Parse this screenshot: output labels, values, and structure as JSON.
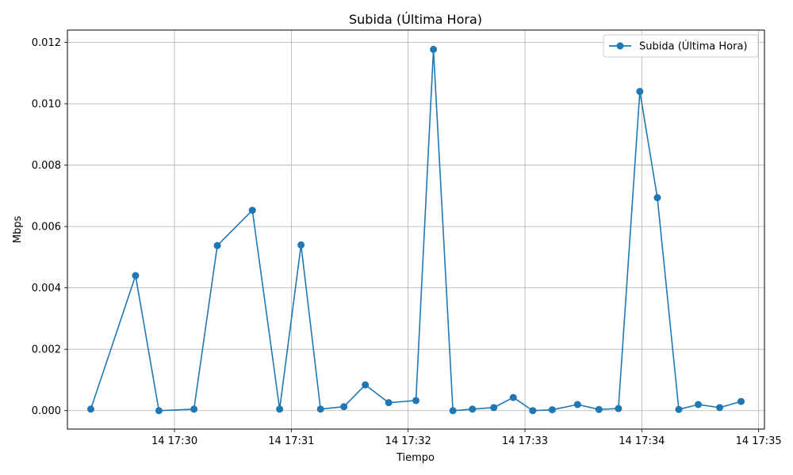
{
  "chart_data": {
    "type": "line",
    "title": "Subida (Última Hora)",
    "xlabel": "Tiempo",
    "ylabel": "Mbps",
    "grid": true,
    "legend_position": "top-right",
    "series_color": "#1f77b4",
    "xlim": [
      "14 17:29:05",
      "14 17:35:03"
    ],
    "ylim": [
      -0.0006,
      0.0124
    ],
    "x_ticks": [
      "14 17:30",
      "14 17:31",
      "14 17:32",
      "14 17:33",
      "14 17:34",
      "14 17:35"
    ],
    "x_tick_times": [
      "14 17:30:00",
      "14 17:31:00",
      "14 17:32:00",
      "14 17:33:00",
      "14 17:34:00",
      "14 17:35:00"
    ],
    "y_ticks": [
      "0.000",
      "0.002",
      "0.004",
      "0.006",
      "0.008",
      "0.010",
      "0.012"
    ],
    "y_tick_values": [
      0,
      0.002,
      0.004,
      0.006,
      0.008,
      0.01,
      0.012
    ],
    "series": [
      {
        "name": "Subida (Última Hora)",
        "x": [
          "14 17:29:17",
          "14 17:29:40",
          "14 17:29:52",
          "14 17:30:10",
          "14 17:30:22",
          "14 17:30:40",
          "14 17:30:54",
          "14 17:31:05",
          "14 17:31:15",
          "14 17:31:27",
          "14 17:31:38",
          "14 17:31:50",
          "14 17:32:04",
          "14 17:32:13",
          "14 17:32:23",
          "14 17:32:33",
          "14 17:32:44",
          "14 17:32:54",
          "14 17:33:04",
          "14 17:33:14",
          "14 17:33:27",
          "14 17:33:38",
          "14 17:33:48",
          "14 17:33:59",
          "14 17:34:08",
          "14 17:34:19",
          "14 17:34:29",
          "14 17:34:40",
          "14 17:34:51"
        ],
        "values": [
          5e-05,
          0.0044,
          0.0,
          5e-05,
          0.00538,
          0.00653,
          5e-05,
          0.0054,
          5e-05,
          0.00013,
          0.00084,
          0.00026,
          0.00033,
          0.01177,
          0.0,
          5e-05,
          0.0001,
          0.00043,
          0.0,
          3e-05,
          0.0002,
          4e-05,
          7e-05,
          0.0104,
          0.00694,
          4e-05,
          0.0002,
          0.0001,
          0.0003
        ]
      }
    ]
  }
}
